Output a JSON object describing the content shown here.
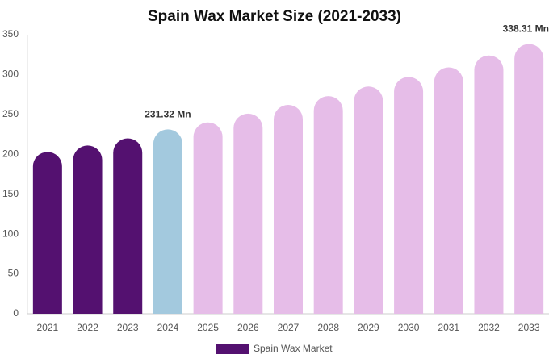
{
  "chart_data": {
    "type": "bar",
    "title": "Spain Wax Market Size (2021-2033)",
    "categories": [
      "2021",
      "2022",
      "2023",
      "2024",
      "2025",
      "2026",
      "2027",
      "2028",
      "2029",
      "2030",
      "2031",
      "2032",
      "2033"
    ],
    "series": [
      {
        "name": "Spain Wax Market",
        "color": "#541170",
        "values": [
          203,
          211,
          220,
          231.32,
          240,
          251,
          262,
          273,
          285,
          297,
          309,
          324,
          338.31
        ],
        "value_labels": [
          null,
          null,
          null,
          "231.32 Mn",
          null,
          null,
          null,
          null,
          null,
          null,
          null,
          null,
          "338.31 Mn"
        ],
        "colors": [
          "#541170",
          "#541170",
          "#541170",
          "#a3c9de",
          "#e6bde8",
          "#e6bde8",
          "#e6bde8",
          "#e6bde8",
          "#e6bde8",
          "#e6bde8",
          "#e6bde8",
          "#e6bde8",
          "#e6bde8"
        ]
      }
    ],
    "ylim": [
      0,
      350
    ],
    "yticks": [
      0,
      50,
      100,
      150,
      200,
      250,
      300,
      350
    ],
    "grid": false,
    "legend": "bottom"
  }
}
